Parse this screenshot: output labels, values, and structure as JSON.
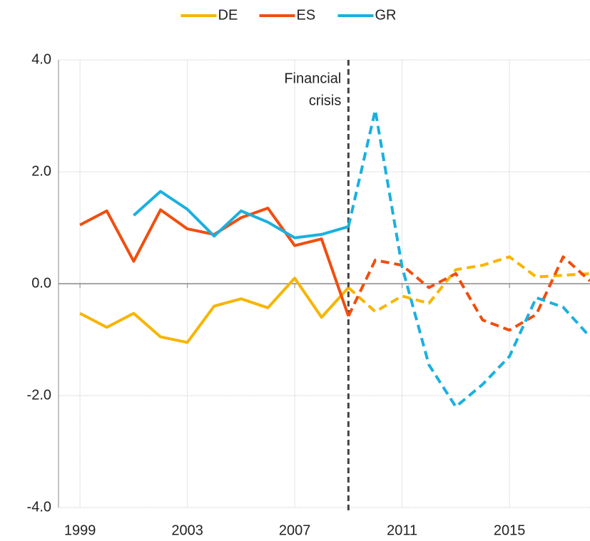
{
  "chart_data": {
    "type": "line",
    "x": [
      1999,
      2000,
      2001,
      2002,
      2003,
      2004,
      2005,
      2006,
      2007,
      2008,
      2009,
      2010,
      2011,
      2012,
      2013,
      2014,
      2015,
      2016,
      2017,
      2018
    ],
    "series": [
      {
        "name": "DE",
        "color": "#f7b500",
        "values": [
          -0.53,
          -0.78,
          -0.53,
          -0.95,
          -1.05,
          -0.4,
          -0.27,
          -0.43,
          0.1,
          -0.6,
          -0.07,
          -0.5,
          -0.22,
          -0.35,
          0.25,
          0.33,
          0.48,
          0.12,
          0.15,
          0.18
        ]
      },
      {
        "name": "ES",
        "color": "#f04e0f",
        "values": [
          1.05,
          1.3,
          0.4,
          1.32,
          0.98,
          0.88,
          1.18,
          1.35,
          0.68,
          0.8,
          -0.58,
          0.42,
          0.33,
          -0.07,
          0.18,
          -0.65,
          -0.83,
          -0.55,
          0.48,
          0.05
        ]
      },
      {
        "name": "GR",
        "color": "#1ab0e0",
        "values": [
          null,
          null,
          1.22,
          1.65,
          1.33,
          0.85,
          1.3,
          1.1,
          0.82,
          0.88,
          1.02,
          3.1,
          0.3,
          -1.45,
          -2.2,
          -1.8,
          -1.3,
          -0.25,
          -0.42,
          -0.95
        ]
      }
    ],
    "xlim": [
      1998.2,
      2018
    ],
    "xticks": [
      1999,
      2003,
      2007,
      2011,
      2015
    ],
    "ylim": [
      -4,
      4
    ],
    "yticks": [
      {
        "value": -4,
        "label": "-4.0"
      },
      {
        "value": -2,
        "label": "-2.0"
      },
      {
        "value": 0,
        "label": "0.0"
      },
      {
        "value": 2,
        "label": "2.0"
      },
      {
        "value": 4,
        "label": "4.0"
      }
    ],
    "grid": true,
    "legend": "top",
    "annotation": {
      "text": [
        "Financial",
        "crisis"
      ],
      "x": 2009
    }
  }
}
